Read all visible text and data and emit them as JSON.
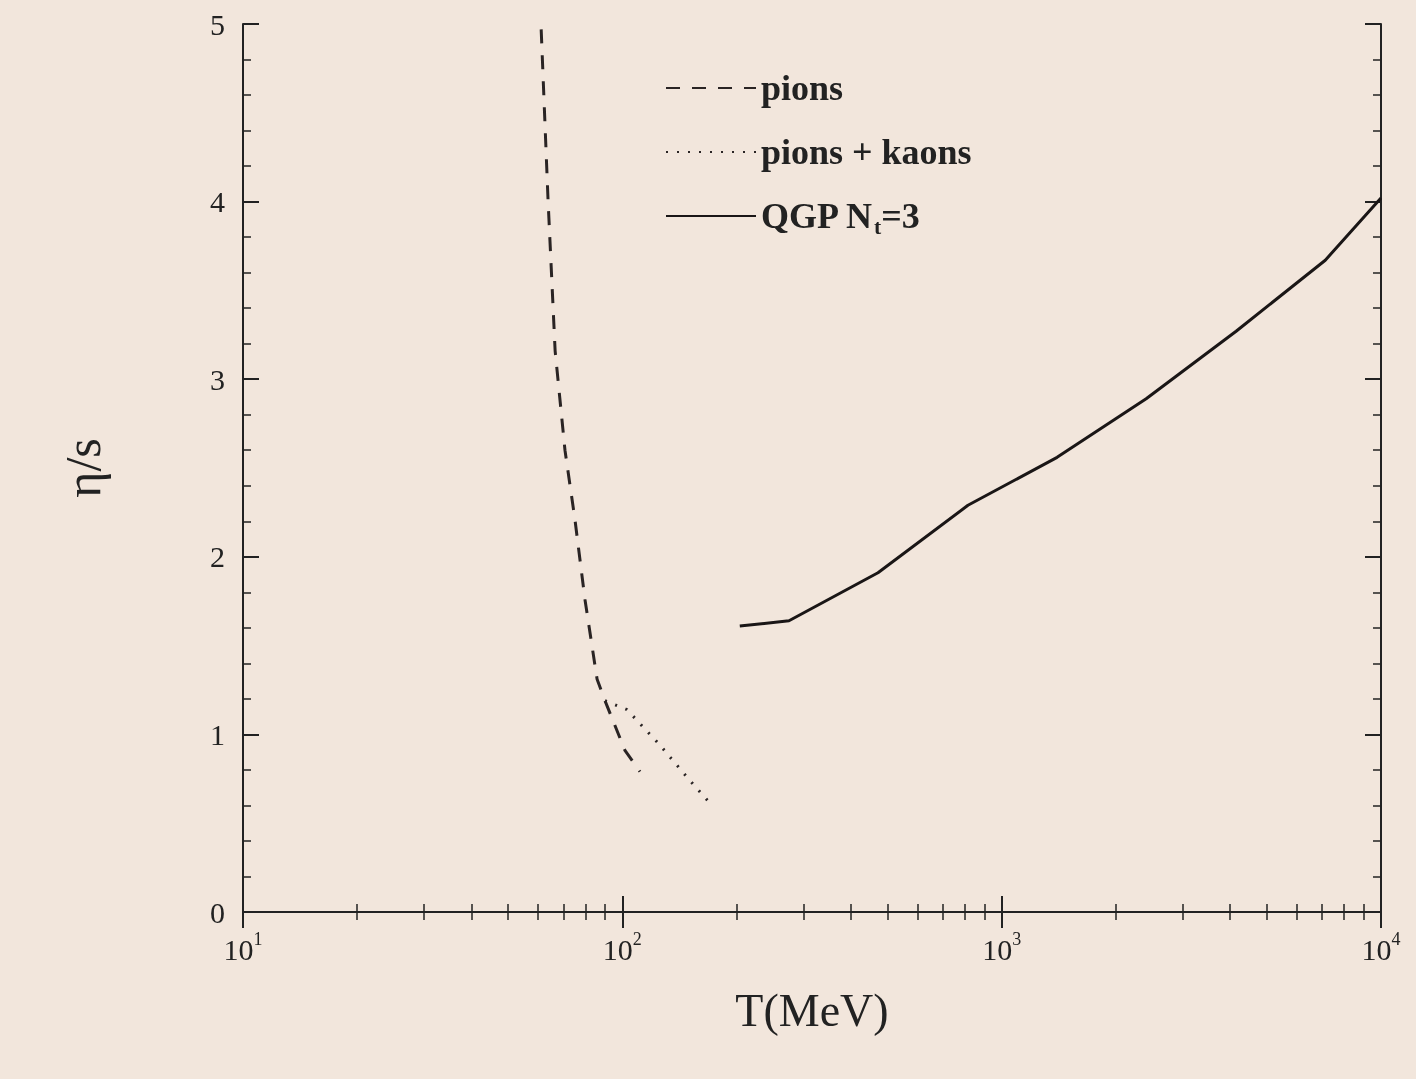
{
  "chart_data": {
    "type": "line",
    "xlabel": "T(MeV)",
    "ylabel": "η/s",
    "log": "x",
    "grid": false,
    "legend": "top right",
    "marker": "none",
    "xlim": [
      10,
      10000
    ],
    "xticks": [
      {
        "value": 10,
        "label": "10$^{1}$"
      },
      {
        "value": 100,
        "label": "10$^{2}$"
      },
      {
        "value": 1000,
        "label": "10$^{3}$"
      },
      {
        "value": 10000,
        "label": "10$^{4}$"
      }
    ],
    "ylim": [
      0,
      5
    ],
    "yticks": [
      0,
      1,
      2,
      3,
      4,
      5
    ],
    "series": [
      {
        "name": "pions",
        "color": "#2a2424",
        "line_style": "dashed",
        "x": [
          61.1,
          63.7,
          66.5,
          70.6,
          75.0,
          79.7,
          85.8,
          90.0,
          101.6,
          111.3
        ],
        "values": [
          4.97,
          4.01,
          3.16,
          2.6,
          2.21,
          1.76,
          1.31,
          1.19,
          0.91,
          0.79
        ]
      },
      {
        "name": "pions + kaons",
        "color": "#2a2424",
        "line_style": "dotted",
        "x": [
          90.0,
          102.8,
          125.6,
          150.7,
          172.2
        ],
        "values": [
          1.19,
          1.14,
          0.94,
          0.74,
          0.6
        ]
      },
      {
        "name": "QGP N$_{t}$=3",
        "color": "#1a1616",
        "line_style": "solid",
        "x": [
          204,
          275,
          472,
          815,
          1400,
          2404,
          4150,
          7130,
          10000
        ],
        "values": [
          1.61,
          1.64,
          1.91,
          2.29,
          2.56,
          2.89,
          3.27,
          3.67,
          4.02
        ]
      }
    ]
  }
}
